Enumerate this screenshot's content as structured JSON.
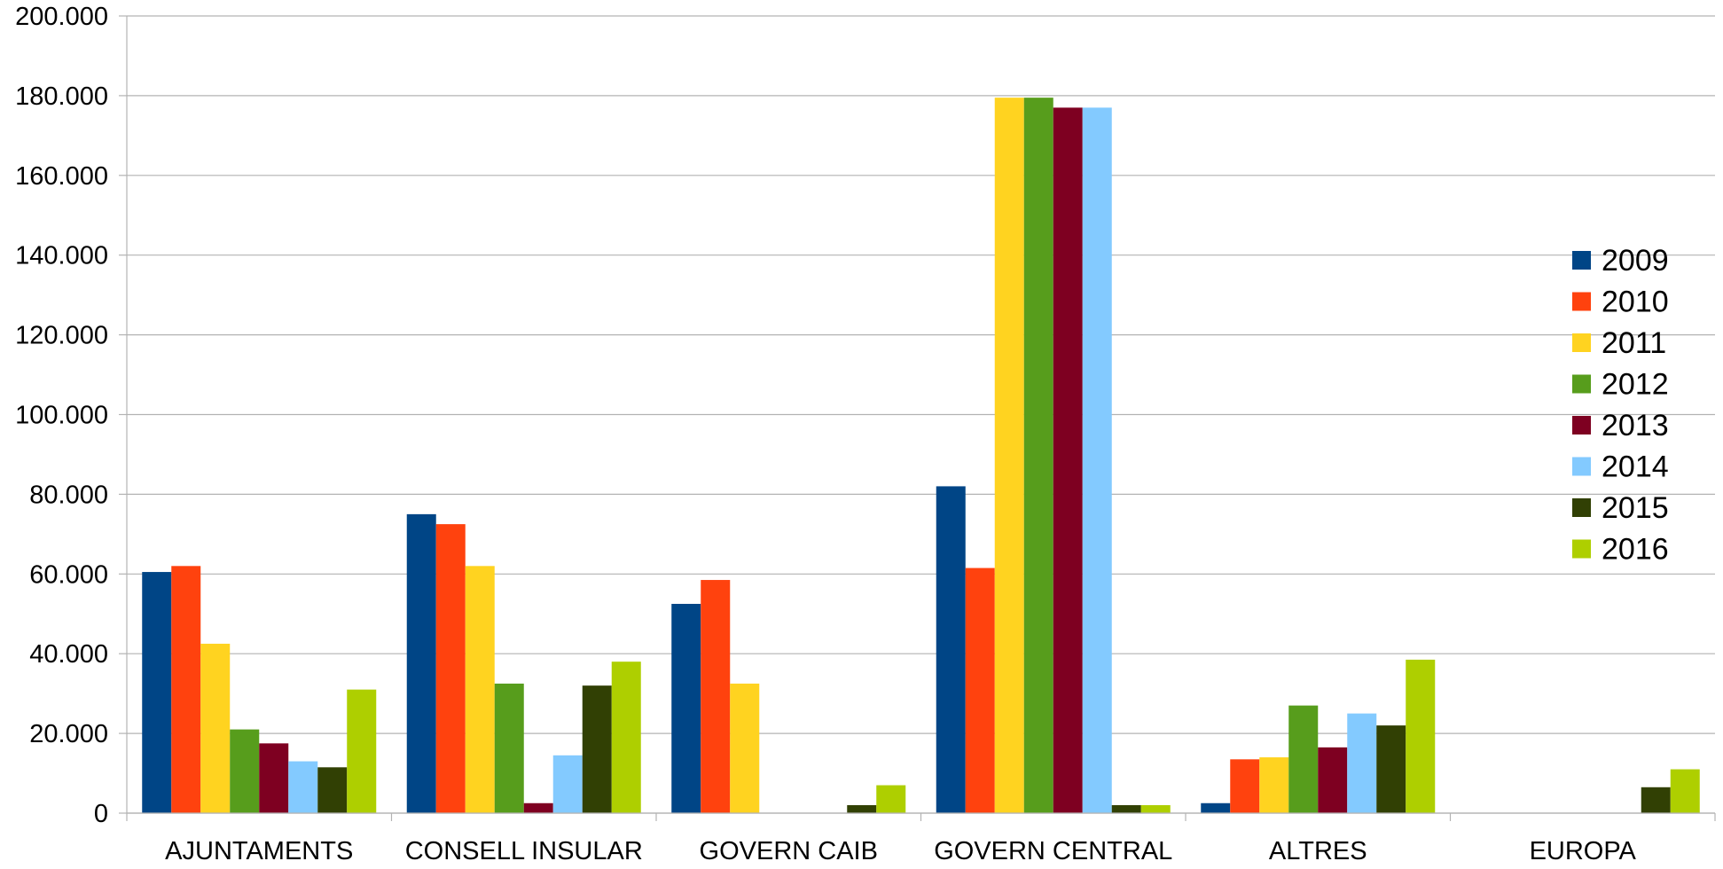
{
  "chart_data": {
    "type": "bar",
    "title": "",
    "xlabel": "",
    "ylabel": "",
    "ylim": [
      0,
      200000
    ],
    "yticks": [
      0,
      20000,
      40000,
      60000,
      80000,
      100000,
      120000,
      140000,
      160000,
      180000,
      200000
    ],
    "ytick_labels": [
      "0",
      "20.000",
      "40.000",
      "60.000",
      "80.000",
      "100.000",
      "120.000",
      "140.000",
      "160.000",
      "180.000",
      "200.000"
    ],
    "grid": "horizontal",
    "legend_position": "right",
    "categories": [
      "AJUNTAMENTS",
      "CONSELL INSULAR",
      "GOVERN CAIB",
      "GOVERN CENTRAL",
      "ALTRES",
      "EUROPA"
    ],
    "series": [
      {
        "name": "2009",
        "color": "#004586",
        "values": [
          60500,
          75000,
          52500,
          82000,
          2500,
          0
        ]
      },
      {
        "name": "2010",
        "color": "#ff420e",
        "values": [
          62000,
          72500,
          58500,
          61500,
          13500,
          0
        ]
      },
      {
        "name": "2011",
        "color": "#ffd320",
        "values": [
          42500,
          62000,
          32500,
          179500,
          14000,
          0
        ]
      },
      {
        "name": "2012",
        "color": "#579d1c",
        "values": [
          21000,
          32500,
          0,
          179500,
          27000,
          0
        ]
      },
      {
        "name": "2013",
        "color": "#7e0021",
        "values": [
          17500,
          2500,
          0,
          177000,
          16500,
          0
        ]
      },
      {
        "name": "2014",
        "color": "#83caff",
        "values": [
          13000,
          14500,
          0,
          177000,
          25000,
          0
        ]
      },
      {
        "name": "2015",
        "color": "#314004",
        "values": [
          11500,
          32000,
          2000,
          2000,
          22000,
          6500
        ]
      },
      {
        "name": "2016",
        "color": "#aecf00",
        "values": [
          31000,
          38000,
          7000,
          2000,
          38500,
          11000
        ]
      }
    ]
  }
}
